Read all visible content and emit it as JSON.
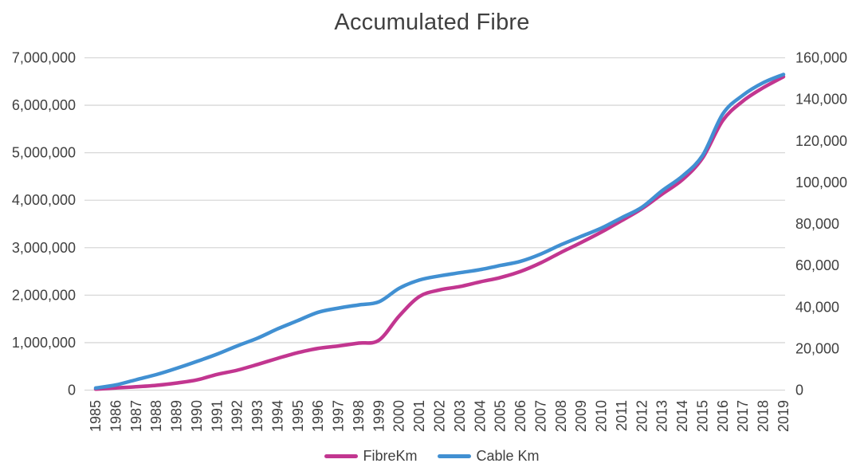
{
  "title": "Accumulated Fibre",
  "colors": {
    "fibre_line": "#C23690",
    "cable_line": "#4190D2",
    "grid": "#D8D8D8",
    "text": "#404040",
    "background": "#FFFFFF"
  },
  "chart_data": {
    "type": "line",
    "title": "Accumulated Fibre",
    "grid": true,
    "legend_position": "bottom",
    "x_label_rotation": -90,
    "categories": [
      "1985",
      "1986",
      "1987",
      "1988",
      "1989",
      "1990",
      "1991",
      "1992",
      "1993",
      "1994",
      "1995",
      "1996",
      "1997",
      "1998",
      "1999",
      "2000",
      "2001",
      "2002",
      "2003",
      "2004",
      "2005",
      "2006",
      "2007",
      "2008",
      "2009",
      "2010",
      "2011",
      "2012",
      "2013",
      "2014",
      "2015",
      "2016",
      "2017",
      "2018",
      "2019"
    ],
    "series": [
      {
        "name": "FibreKm",
        "axis": "left",
        "color": "#C23690",
        "values": [
          20000,
          45000,
          70000,
          100000,
          150000,
          215000,
          330000,
          420000,
          540000,
          670000,
          790000,
          880000,
          930000,
          990000,
          1050000,
          1560000,
          1970000,
          2110000,
          2180000,
          2280000,
          2370000,
          2500000,
          2680000,
          2900000,
          3110000,
          3330000,
          3570000,
          3820000,
          4130000,
          4430000,
          4890000,
          5680000,
          6090000,
          6370000,
          6600000
        ]
      },
      {
        "name": "Cable Km",
        "axis": "right",
        "color": "#4190D2",
        "values": [
          1000,
          2500,
          5000,
          7500,
          10500,
          13800,
          17300,
          21300,
          25000,
          29500,
          33500,
          37500,
          39500,
          41000,
          42500,
          49000,
          53000,
          55000,
          56500,
          58000,
          60000,
          62000,
          65500,
          70000,
          74000,
          78000,
          83000,
          88000,
          96000,
          103000,
          113000,
          133000,
          142000,
          148000,
          152000
        ]
      }
    ],
    "left_axis": {
      "min": 0,
      "max": 7000000,
      "step": 1000000,
      "tick_labels": [
        "7,000,000",
        "6,000,000",
        "5,000,000",
        "4,000,000",
        "3,000,000",
        "2,000,000",
        "1,000,000",
        "0"
      ]
    },
    "right_axis": {
      "min": 0,
      "max": 160000,
      "step": 20000,
      "tick_labels": [
        "160,000",
        "140,000",
        "120,000",
        "100,000",
        "80,000",
        "60,000",
        "40,000",
        "20,000",
        "0"
      ]
    }
  }
}
